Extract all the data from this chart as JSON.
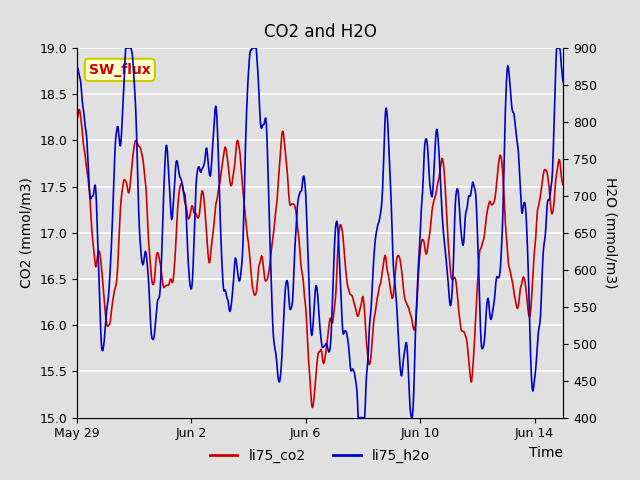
{
  "title": "CO2 and H2O",
  "xlabel": "Time",
  "ylabel_left": "CO2 (mmol/m3)",
  "ylabel_right": "H2O (mmol/m3)",
  "ylim_left": [
    15.0,
    19.0
  ],
  "ylim_right": [
    400,
    900
  ],
  "color_co2": "#cc0000",
  "color_h2o": "#0000cc",
  "legend_co2": "li75_co2",
  "legend_h2o": "li75_h2o",
  "sw_flux_label": "SW_flux",
  "bg_color": "#e0e0e0",
  "plot_bg_color": "#e0e0e0",
  "grid_color": "#ffffff",
  "annotation_box_color": "#ffffcc",
  "annotation_border_color": "#cccc00",
  "annotation_text_color": "#cc0000",
  "title_fontsize": 12,
  "label_fontsize": 10,
  "tick_fontsize": 9,
  "legend_fontsize": 10,
  "line_width": 1.2,
  "figwidth": 6.4,
  "figheight": 4.8,
  "dpi": 100
}
